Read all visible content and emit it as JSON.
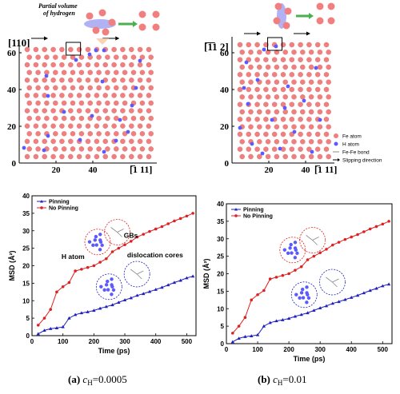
{
  "top_left": {
    "dir_label": "[110]",
    "x_dir_label": "[̅1 11]",
    "callout": "Partial volume of hydrogen",
    "yticks": [
      "0",
      "20",
      "40",
      "60"
    ],
    "xticks": [
      "20",
      "40"
    ]
  },
  "top_right": {
    "dir_label": "[̅1̅1 2]",
    "x_dir_label": "[̅1 11]",
    "yticks": [
      "0",
      "20",
      "40",
      "60"
    ],
    "xticks": [
      "20",
      "40"
    ]
  },
  "atom_legend": [
    {
      "label": "Fe atom",
      "kind": "fe",
      "color": "#f08080"
    },
    {
      "label": "H atom",
      "kind": "h",
      "color": "#5a5aff"
    },
    {
      "label": "Fe-Fe bond",
      "kind": "bond",
      "color": "#888888"
    },
    {
      "label": "Slipping direction",
      "kind": "arrow",
      "color": "#000000"
    }
  ],
  "chart_data": [
    {
      "type": "line",
      "panel": "a",
      "caption_prefix": "(a) ",
      "caption_var": "c",
      "caption_sub": "H",
      "caption_value": "=0.0005",
      "xlabel": "Time (ps)",
      "ylabel": "MSD (Å²)",
      "xlim": [
        0,
        530
      ],
      "ylim": [
        0,
        40
      ],
      "xticks": [
        0,
        100,
        200,
        300,
        400,
        500
      ],
      "yticks": [
        0,
        5,
        10,
        15,
        20,
        25,
        30,
        35,
        40
      ],
      "legend_position": "top-left",
      "annotations": [
        "GBs",
        "H atom",
        "dislocation cores"
      ],
      "series": [
        {
          "name": "Pinning",
          "color": "#1f1fbf",
          "marker": "triangle",
          "x": [
            20,
            40,
            60,
            80,
            100,
            120,
            140,
            160,
            180,
            200,
            220,
            240,
            260,
            280,
            300,
            320,
            340,
            360,
            380,
            400,
            420,
            440,
            460,
            480,
            500,
            520
          ],
          "y": [
            0.5,
            1.5,
            2.0,
            2.2,
            2.5,
            5.0,
            6.0,
            6.5,
            6.8,
            7.2,
            7.8,
            8.3,
            8.8,
            9.5,
            10.2,
            10.8,
            11.5,
            12.0,
            12.6,
            13.2,
            13.8,
            14.5,
            15.2,
            15.8,
            16.5,
            17.0
          ]
        },
        {
          "name": "No Pinning",
          "color": "#e02020",
          "marker": "circle",
          "x": [
            20,
            40,
            60,
            80,
            100,
            120,
            140,
            160,
            180,
            200,
            220,
            240,
            260,
            280,
            300,
            320,
            340,
            360,
            380,
            400,
            420,
            440,
            460,
            480,
            500,
            520
          ],
          "y": [
            3.0,
            5.0,
            7.5,
            12.5,
            14.0,
            15.2,
            18.5,
            19.0,
            19.5,
            20.0,
            21.0,
            22.0,
            24.0,
            25.0,
            26.0,
            27.0,
            28.2,
            29.0,
            29.8,
            30.5,
            31.2,
            32.0,
            32.8,
            33.5,
            34.2,
            35.0
          ]
        }
      ]
    },
    {
      "type": "line",
      "panel": "b",
      "caption_prefix": "(b) ",
      "caption_var": "c",
      "caption_sub": "H",
      "caption_value": "=0.01",
      "xlabel": "Time (ps)",
      "ylabel": "MSD (Å²)",
      "xlim": [
        0,
        530
      ],
      "ylim": [
        0,
        40
      ],
      "xticks": [
        0,
        100,
        200,
        300,
        400,
        500
      ],
      "yticks": [
        0,
        5,
        10,
        15,
        20,
        25,
        30,
        35,
        40
      ],
      "legend_position": "top-left",
      "annotations": [],
      "series": [
        {
          "name": "Pinning",
          "color": "#1f1fbf",
          "marker": "triangle",
          "x": [
            20,
            40,
            60,
            80,
            100,
            120,
            140,
            160,
            180,
            200,
            220,
            240,
            260,
            280,
            300,
            320,
            340,
            360,
            380,
            400,
            420,
            440,
            460,
            480,
            500,
            520
          ],
          "y": [
            0.5,
            1.5,
            2.0,
            2.2,
            2.5,
            5.0,
            6.0,
            6.5,
            6.8,
            7.2,
            7.8,
            8.3,
            8.8,
            9.5,
            10.2,
            10.8,
            11.5,
            12.0,
            12.6,
            13.2,
            13.8,
            14.5,
            15.2,
            15.8,
            16.5,
            17.0
          ]
        },
        {
          "name": "No Pinning",
          "color": "#e02020",
          "marker": "circle",
          "x": [
            20,
            40,
            60,
            80,
            100,
            120,
            140,
            160,
            180,
            200,
            220,
            240,
            260,
            280,
            300,
            320,
            340,
            360,
            380,
            400,
            420,
            440,
            460,
            480,
            500,
            520
          ],
          "y": [
            3.0,
            5.0,
            7.5,
            12.5,
            14.0,
            15.2,
            18.5,
            19.0,
            19.5,
            20.0,
            21.0,
            22.0,
            24.0,
            25.0,
            26.0,
            27.0,
            28.2,
            29.0,
            29.8,
            30.5,
            31.2,
            32.0,
            32.8,
            33.5,
            34.2,
            35.0
          ]
        }
      ]
    }
  ]
}
